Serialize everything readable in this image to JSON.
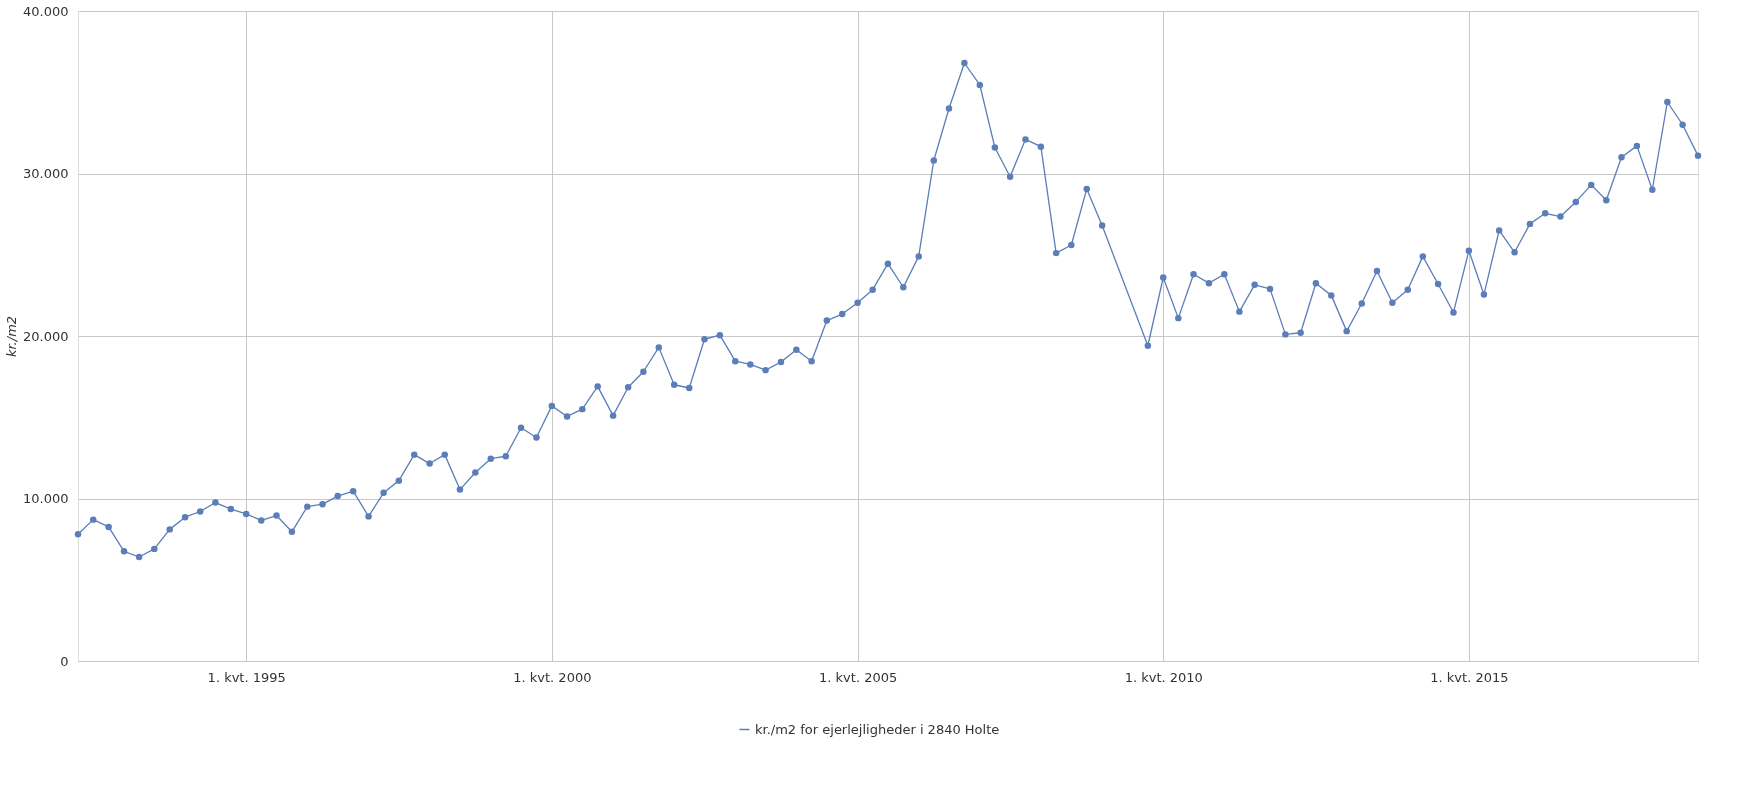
{
  "chart_data": {
    "type": "line",
    "ylabel": "kr./m2",
    "x": [
      "1992-04",
      "1992-07",
      "1992-10",
      "1993-01",
      "1993-04",
      "1993-07",
      "1993-10",
      "1994-01",
      "1994-04",
      "1994-07",
      "1994-10",
      "1995-01",
      "1995-04",
      "1995-07",
      "1995-10",
      "1996-01",
      "1996-04",
      "1996-07",
      "1996-10",
      "1997-01",
      "1997-04",
      "1997-07",
      "1997-10",
      "1998-01",
      "1998-04",
      "1998-07",
      "1998-10",
      "1999-01",
      "1999-04",
      "1999-07",
      "1999-10",
      "2000-01",
      "2000-04",
      "2000-07",
      "2000-10",
      "2001-01",
      "2001-04",
      "2001-07",
      "2001-10",
      "2002-01",
      "2002-04",
      "2002-07",
      "2002-10",
      "2003-01",
      "2003-04",
      "2003-07",
      "2003-10",
      "2004-01",
      "2004-04",
      "2004-07",
      "2004-10",
      "2005-01",
      "2005-04",
      "2005-07",
      "2005-10",
      "2006-01",
      "2006-04",
      "2006-07",
      "2006-10",
      "2007-01",
      "2007-04",
      "2007-07",
      "2007-10",
      "2008-01",
      "2008-04",
      "2008-07",
      "2008-10",
      "2009-01",
      "2009-10",
      "2010-01",
      "2010-04",
      "2010-07",
      "2010-10",
      "2011-01",
      "2011-04",
      "2011-07",
      "2011-10",
      "2012-01",
      "2012-04",
      "2012-07",
      "2012-10",
      "2013-01",
      "2013-04",
      "2013-07",
      "2013-10",
      "2014-01",
      "2014-04",
      "2014-07",
      "2014-10",
      "2015-01",
      "2015-04",
      "2015-07",
      "2015-10",
      "2016-01",
      "2016-04",
      "2016-07",
      "2016-10",
      "2017-01",
      "2017-04",
      "2017-07",
      "2017-10",
      "2018-01",
      "2018-04",
      "2018-07",
      "2018-10"
    ],
    "series": [
      {
        "name": "kr./m2 for ejerlejligheder i 2840 Holte",
        "color": "#5b7db8",
        "values": [
          7800,
          8700,
          8250,
          6750,
          6400,
          6900,
          8100,
          8850,
          9200,
          9750,
          9350,
          9050,
          8650,
          8950,
          7950,
          9500,
          9650,
          10150,
          10450,
          8900,
          10350,
          11100,
          12700,
          12150,
          12700,
          10550,
          11600,
          12450,
          12600,
          14350,
          13750,
          15700,
          15050,
          15500,
          16900,
          15100,
          16850,
          17800,
          19300,
          17000,
          16800,
          19800,
          20050,
          18450,
          18250,
          17900,
          18400,
          19150,
          18450,
          20950,
          21350,
          22050,
          22850,
          24450,
          23000,
          24900,
          30800,
          34000,
          36800,
          35450,
          31600,
          29800,
          32100,
          31650,
          25100,
          25600,
          29050,
          26800,
          19400,
          23600,
          21100,
          23800,
          23250,
          23800,
          21500,
          23150,
          22900,
          20100,
          20200,
          23250,
          22500,
          20300,
          22000,
          24000,
          22050,
          22850,
          24900,
          23200,
          21450,
          25250,
          22550,
          26500,
          25150,
          26900,
          27550,
          27350,
          28250,
          29300,
          28350,
          31000,
          31700,
          29000,
          34400,
          33000,
          31100
        ]
      }
    ],
    "xlim": [
      "1992-04",
      "2018-10"
    ],
    "xticks": [
      {
        "value": "1995-01",
        "label": "1. kvt. 1995"
      },
      {
        "value": "2000-01",
        "label": "1. kvt. 2000"
      },
      {
        "value": "2005-01",
        "label": "1. kvt. 2005"
      },
      {
        "value": "2010-01",
        "label": "1. kvt. 2010"
      },
      {
        "value": "2015-01",
        "label": "1. kvt. 2015"
      }
    ],
    "ylim": [
      0,
      40000
    ],
    "yticks": [
      {
        "value": 0,
        "label": "0"
      },
      {
        "value": 10000,
        "label": "10.000"
      },
      {
        "value": 20000,
        "label": "20.000"
      },
      {
        "value": 30000,
        "label": "30.000"
      },
      {
        "value": 40000,
        "label": "40.000"
      }
    ],
    "grid": true,
    "legend": "bottom",
    "marker": "circle",
    "line_style": "solid"
  }
}
